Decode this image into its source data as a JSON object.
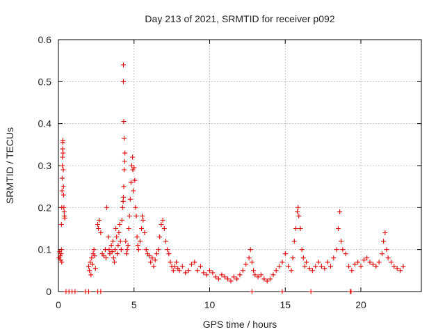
{
  "chart_data": {
    "type": "scatter",
    "title": "Day 213 of 2021, SRMTID for receiver p092",
    "xlabel": "GPS time / hours",
    "ylabel": "SRMTID / TECUs",
    "xlim": [
      0,
      24
    ],
    "ylim": [
      0,
      0.6
    ],
    "xticks": [
      0,
      5,
      10,
      15,
      20
    ],
    "yticks": [
      0,
      0.1,
      0.2,
      0.3,
      0.4,
      0.5,
      0.6
    ],
    "xtick_labels": [
      "0",
      "5",
      "10",
      "15",
      "20"
    ],
    "ytick_labels": [
      "0",
      "0.1",
      "0.2",
      "0.3",
      "0.4",
      "0.5",
      "0.6"
    ],
    "grid": true,
    "legend": null,
    "marker": "+",
    "marker_color": "#e00000",
    "series": [
      {
        "name": "SRMTID",
        "points": [
          [
            0.05,
            0.08
          ],
          [
            0.08,
            0.095
          ],
          [
            0.12,
            0.085
          ],
          [
            0.15,
            0.075
          ],
          [
            0.18,
            0.09
          ],
          [
            0.2,
            0.1
          ],
          [
            0.22,
            0.07
          ],
          [
            0.2,
            0.16
          ],
          [
            0.22,
            0.2
          ],
          [
            0.24,
            0.24
          ],
          [
            0.25,
            0.27
          ],
          [
            0.26,
            0.3
          ],
          [
            0.27,
            0.32
          ],
          [
            0.28,
            0.34
          ],
          [
            0.29,
            0.355
          ],
          [
            0.3,
            0.36
          ],
          [
            0.31,
            0.33
          ],
          [
            0.32,
            0.29
          ],
          [
            0.33,
            0.25
          ],
          [
            0.34,
            0.23
          ],
          [
            0.36,
            0.2
          ],
          [
            0.38,
            0.19
          ],
          [
            0.4,
            0.18
          ],
          [
            0.42,
            0.175
          ],
          [
            0.5,
            0.0
          ],
          [
            0.7,
            0.0
          ],
          [
            0.9,
            0.0
          ],
          [
            1.1,
            0.0
          ],
          [
            1.8,
            0.0
          ],
          [
            2.0,
            0.0
          ],
          [
            2.6,
            0.0
          ],
          [
            2.8,
            0.0
          ],
          [
            2.0,
            0.06
          ],
          [
            2.05,
            0.05
          ],
          [
            2.1,
            0.07
          ],
          [
            2.15,
            0.04
          ],
          [
            2.2,
            0.08
          ],
          [
            2.25,
            0.065
          ],
          [
            2.3,
            0.09
          ],
          [
            2.35,
            0.1
          ],
          [
            2.4,
            0.085
          ],
          [
            2.45,
            0.055
          ],
          [
            2.6,
            0.16
          ],
          [
            2.65,
            0.15
          ],
          [
            2.7,
            0.17
          ],
          [
            2.8,
            0.14
          ],
          [
            2.9,
            0.09
          ],
          [
            3.0,
            0.085
          ],
          [
            3.1,
            0.1
          ],
          [
            3.15,
            0.08
          ],
          [
            3.2,
            0.2
          ],
          [
            3.3,
            0.13
          ],
          [
            3.35,
            0.1
          ],
          [
            3.4,
            0.09
          ],
          [
            3.5,
            0.11
          ],
          [
            3.55,
            0.095
          ],
          [
            3.6,
            0.12
          ],
          [
            3.65,
            0.08
          ],
          [
            3.7,
            0.07
          ],
          [
            3.75,
            0.1
          ],
          [
            3.8,
            0.15
          ],
          [
            3.85,
            0.13
          ],
          [
            3.9,
            0.09
          ],
          [
            3.95,
            0.11
          ],
          [
            4.0,
            0.14
          ],
          [
            4.05,
            0.16
          ],
          [
            4.1,
            0.12
          ],
          [
            4.15,
            0.1
          ],
          [
            4.2,
            0.17
          ],
          [
            4.25,
            0.2
          ],
          [
            4.28,
            0.215
          ],
          [
            4.3,
            0.225
          ],
          [
            4.32,
            0.25
          ],
          [
            4.35,
            0.29
          ],
          [
            4.38,
            0.31
          ],
          [
            4.4,
            0.33
          ],
          [
            4.3,
            0.54
          ],
          [
            4.3,
            0.5
          ],
          [
            4.32,
            0.405
          ],
          [
            4.35,
            0.365
          ],
          [
            4.45,
            0.12
          ],
          [
            4.5,
            0.09
          ],
          [
            4.55,
            0.1
          ],
          [
            4.6,
            0.11
          ],
          [
            4.65,
            0.15
          ],
          [
            4.7,
            0.18
          ],
          [
            4.75,
            0.22
          ],
          [
            4.8,
            0.26
          ],
          [
            4.85,
            0.3
          ],
          [
            4.9,
            0.32
          ],
          [
            4.92,
            0.29
          ],
          [
            4.95,
            0.24
          ],
          [
            5.0,
            0.295
          ],
          [
            5.05,
            0.265
          ],
          [
            5.1,
            0.2
          ],
          [
            5.15,
            0.18
          ],
          [
            5.2,
            0.13
          ],
          [
            5.25,
            0.11
          ],
          [
            5.3,
            0.1
          ],
          [
            5.4,
            0.12
          ],
          [
            5.5,
            0.15
          ],
          [
            5.55,
            0.18
          ],
          [
            5.6,
            0.17
          ],
          [
            5.7,
            0.14
          ],
          [
            5.8,
            0.1
          ],
          [
            5.9,
            0.09
          ],
          [
            6.0,
            0.085
          ],
          [
            6.1,
            0.07
          ],
          [
            6.2,
            0.08
          ],
          [
            6.3,
            0.06
          ],
          [
            6.4,
            0.075
          ],
          [
            6.5,
            0.09
          ],
          [
            6.6,
            0.1
          ],
          [
            6.7,
            0.13
          ],
          [
            6.8,
            0.16
          ],
          [
            6.9,
            0.17
          ],
          [
            7.0,
            0.15
          ],
          [
            7.1,
            0.12
          ],
          [
            7.2,
            0.1
          ],
          [
            7.3,
            0.09
          ],
          [
            7.4,
            0.07
          ],
          [
            7.5,
            0.06
          ],
          [
            7.6,
            0.05
          ],
          [
            7.7,
            0.06
          ],
          [
            7.8,
            0.07
          ],
          [
            7.9,
            0.055
          ],
          [
            8.0,
            0.05
          ],
          [
            8.2,
            0.06
          ],
          [
            8.4,
            0.045
          ],
          [
            8.6,
            0.05
          ],
          [
            8.8,
            0.065
          ],
          [
            9.0,
            0.07
          ],
          [
            9.2,
            0.05
          ],
          [
            9.4,
            0.06
          ],
          [
            9.6,
            0.045
          ],
          [
            9.8,
            0.04
          ],
          [
            10.0,
            0.05
          ],
          [
            10.2,
            0.045
          ],
          [
            10.4,
            0.035
          ],
          [
            10.6,
            0.03
          ],
          [
            10.8,
            0.04
          ],
          [
            11.0,
            0.035
          ],
          [
            11.2,
            0.03
          ],
          [
            11.4,
            0.025
          ],
          [
            11.6,
            0.035
          ],
          [
            11.8,
            0.03
          ],
          [
            12.0,
            0.04
          ],
          [
            12.2,
            0.05
          ],
          [
            12.4,
            0.065
          ],
          [
            12.6,
            0.08
          ],
          [
            12.7,
            0.1
          ],
          [
            12.8,
            0.07
          ],
          [
            12.9,
            0.05
          ],
          [
            13.0,
            0.04
          ],
          [
            13.2,
            0.035
          ],
          [
            13.4,
            0.04
          ],
          [
            13.6,
            0.03
          ],
          [
            13.8,
            0.025
          ],
          [
            14.0,
            0.03
          ],
          [
            14.2,
            0.04
          ],
          [
            14.4,
            0.05
          ],
          [
            14.6,
            0.06
          ],
          [
            14.8,
            0.07
          ],
          [
            15.0,
            0.09
          ],
          [
            15.2,
            0.06
          ],
          [
            15.4,
            0.05
          ],
          [
            15.5,
            0.08
          ],
          [
            15.6,
            0.12
          ],
          [
            15.7,
            0.15
          ],
          [
            15.8,
            0.19
          ],
          [
            15.85,
            0.2
          ],
          [
            15.9,
            0.18
          ],
          [
            16.0,
            0.15
          ],
          [
            16.1,
            0.1
          ],
          [
            16.2,
            0.08
          ],
          [
            16.3,
            0.06
          ],
          [
            16.4,
            0.07
          ],
          [
            16.6,
            0.055
          ],
          [
            16.8,
            0.05
          ],
          [
            17.0,
            0.06
          ],
          [
            17.2,
            0.07
          ],
          [
            17.4,
            0.06
          ],
          [
            17.6,
            0.055
          ],
          [
            17.8,
            0.07
          ],
          [
            18.0,
            0.06
          ],
          [
            18.2,
            0.08
          ],
          [
            18.4,
            0.1
          ],
          [
            18.5,
            0.15
          ],
          [
            18.6,
            0.19
          ],
          [
            18.7,
            0.12
          ],
          [
            18.8,
            0.1
          ],
          [
            19.0,
            0.09
          ],
          [
            19.2,
            0.06
          ],
          [
            19.4,
            0.05
          ],
          [
            19.6,
            0.065
          ],
          [
            19.8,
            0.07
          ],
          [
            20.0,
            0.06
          ],
          [
            20.2,
            0.075
          ],
          [
            20.4,
            0.08
          ],
          [
            20.6,
            0.07
          ],
          [
            20.8,
            0.065
          ],
          [
            21.0,
            0.06
          ],
          [
            21.2,
            0.07
          ],
          [
            21.4,
            0.09
          ],
          [
            21.5,
            0.12
          ],
          [
            21.6,
            0.14
          ],
          [
            21.7,
            0.1
          ],
          [
            21.8,
            0.08
          ],
          [
            22.0,
            0.07
          ],
          [
            22.2,
            0.06
          ],
          [
            22.4,
            0.055
          ],
          [
            22.6,
            0.05
          ],
          [
            22.8,
            0.06
          ],
          [
            12.8,
            0.0
          ],
          [
            14.8,
            0.0
          ],
          [
            16.7,
            0.0
          ],
          [
            19.3,
            0.0
          ],
          [
            19.35,
            0.0
          ]
        ]
      }
    ]
  }
}
